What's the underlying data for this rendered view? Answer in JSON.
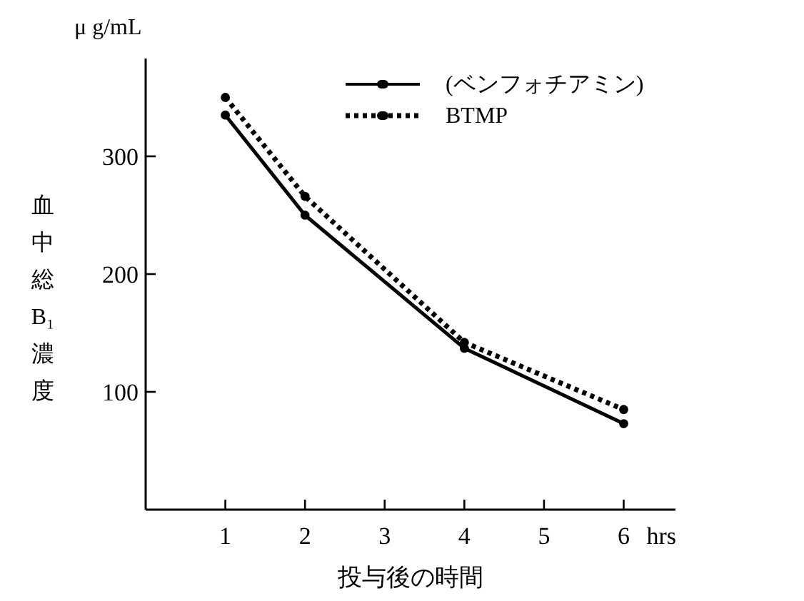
{
  "chart_data": {
    "type": "line",
    "xlabel": "投与後の時間",
    "ylabel": "血中総B₁濃度",
    "annotations": [
      "μ g/mL",
      "hrs"
    ],
    "x": [
      1,
      2,
      4,
      6
    ],
    "xlim": [
      0,
      6.65
    ],
    "xticks": [
      1,
      2,
      3,
      4,
      5,
      6
    ],
    "ylim": [
      0,
      383
    ],
    "yticks": [
      100,
      200,
      300
    ],
    "marker": "circle",
    "legend": "top right",
    "grid": false,
    "series": [
      {
        "name": "(ベンフォチアミン)",
        "color": "#000000",
        "line_style": "solid",
        "values": [
          335,
          250,
          137,
          73
        ]
      },
      {
        "name": "BTMP",
        "color": "#000000",
        "line_style": "dotted",
        "values": [
          350,
          266,
          142,
          85
        ]
      }
    ]
  }
}
